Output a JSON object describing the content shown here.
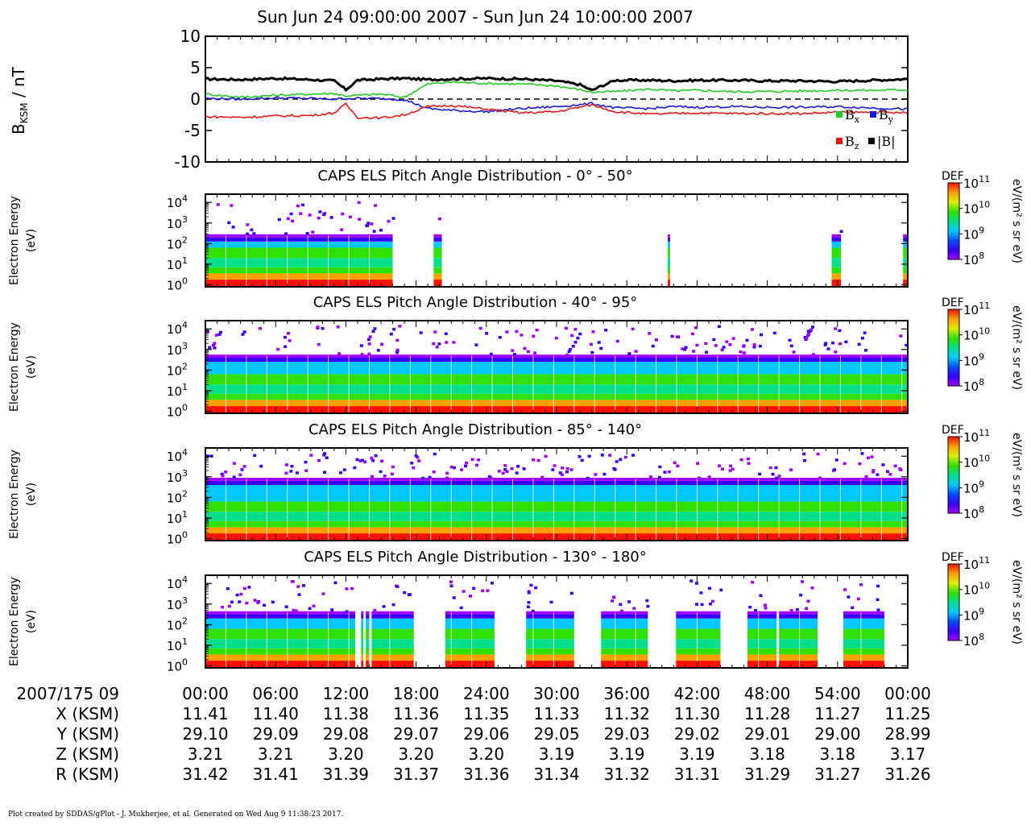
{
  "title": "Sun Jun 24 09:00:00 2007 - Sun Jun 24 10:00:00 2007",
  "footer": "Plot created by SDDAS/gPlot - J. Mukherjee, et al.  Generated on Wed Aug 9 11:38:23 2017.",
  "colors": {
    "bx": "#22cc22",
    "by": "#1a1ad6",
    "bz": "#e41a1a",
    "bmag": "#000000"
  },
  "chart_data": [
    {
      "type": "line",
      "ylabel_main": "B",
      "ylabel_sub": "KSM",
      "ylabel_unit": " / nT",
      "ylim": [
        -10,
        10
      ],
      "yticks": [
        10,
        5,
        0,
        -5,
        -10
      ],
      "xlim": [
        0,
        60
      ],
      "x": [
        0,
        3,
        6,
        9,
        11,
        12,
        13,
        15,
        17,
        19,
        21,
        24,
        27,
        30,
        32,
        33,
        35,
        38,
        40,
        42,
        45,
        48,
        51,
        54,
        57,
        60
      ],
      "legend": [
        "B",
        "B",
        "B",
        "|B|"
      ],
      "legend_subs": [
        "x",
        "y",
        "z",
        ""
      ],
      "series": [
        {
          "key": "bmag",
          "values": [
            3.2,
            3.1,
            3.3,
            3.1,
            2.9,
            1.5,
            3.0,
            3.2,
            3.3,
            3.1,
            3.2,
            3.3,
            3.2,
            2.9,
            2.3,
            1.4,
            3.0,
            3.0,
            2.9,
            3.0,
            3.0,
            2.9,
            2.9,
            2.8,
            3.0,
            3.2
          ]
        },
        {
          "key": "bx",
          "values": [
            0.8,
            0.3,
            0.6,
            0.8,
            0.9,
            0.5,
            0.6,
            0.8,
            0.3,
            2.4,
            2.7,
            2.5,
            2.4,
            2.1,
            1.5,
            1.1,
            1.2,
            1.6,
            1.3,
            1.4,
            1.2,
            1.2,
            1.3,
            1.4,
            1.4,
            1.5
          ]
        },
        {
          "key": "by",
          "values": [
            0.1,
            0.0,
            0.2,
            0.1,
            0.0,
            0.1,
            0.1,
            0.1,
            -0.1,
            -1.5,
            -1.8,
            -2.0,
            -1.5,
            -1.2,
            -0.9,
            -0.7,
            -1.4,
            -1.5,
            -1.2,
            -1.3,
            -1.2,
            -1.3,
            -1.3,
            -1.2,
            -1.4,
            -1.6
          ]
        },
        {
          "key": "bz",
          "values": [
            -2.8,
            -2.9,
            -2.7,
            -2.6,
            -2.2,
            -0.8,
            -2.9,
            -3.0,
            -2.5,
            -1.2,
            -1.0,
            -1.6,
            -2.2,
            -2.0,
            -1.3,
            -0.9,
            -2.0,
            -2.4,
            -2.3,
            -2.2,
            -2.3,
            -2.3,
            -2.3,
            -2.1,
            -2.1,
            -2.2
          ]
        }
      ]
    },
    {
      "type": "heatmap",
      "title": "CAPS ELS Pitch Angle Distribution - 0° - 50°",
      "ylabel": "Electron Energy",
      "ylabel_unit": "(eV)",
      "yscale": "log",
      "yticks": [
        "10",
        "10",
        "10",
        "10",
        "10"
      ],
      "ytick_exps": [
        "4",
        "3",
        "2",
        "1",
        "0"
      ],
      "colorbar_label": "DEF",
      "colorbar_unit": "eV/(m² s sr eV)",
      "colorbar_ticks": [
        "10",
        "10",
        "10",
        "10"
      ],
      "colorbar_exps": [
        "11",
        "10",
        "9",
        "8"
      ],
      "data_windows": [
        [
          0,
          16.0
        ],
        [
          19.5,
          20.2
        ],
        [
          39.5,
          39.7
        ],
        [
          53.5,
          54.3
        ],
        [
          59.6,
          60
        ]
      ],
      "upper_energy_log": 2.3
    },
    {
      "type": "heatmap",
      "title": "CAPS ELS Pitch Angle Distribution - 40° - 95°",
      "ylabel": "Electron Energy",
      "ylabel_unit": "(eV)",
      "yscale": "log",
      "yticks": [
        "10",
        "10",
        "10",
        "10",
        "10"
      ],
      "ytick_exps": [
        "4",
        "3",
        "2",
        "1",
        "0"
      ],
      "colorbar_label": "DEF",
      "colorbar_unit": "eV/(m² s sr eV)",
      "colorbar_ticks": [
        "10",
        "10",
        "10",
        "10"
      ],
      "colorbar_exps": [
        "11",
        "10",
        "9",
        "8"
      ],
      "data_windows": [
        [
          0,
          60
        ]
      ],
      "upper_energy_log": 2.6
    },
    {
      "type": "heatmap",
      "title": "CAPS ELS Pitch Angle Distribution - 85° - 140°",
      "ylabel": "Electron Energy",
      "ylabel_unit": "(eV)",
      "yscale": "log",
      "yticks": [
        "10",
        "10",
        "10",
        "10",
        "10"
      ],
      "ytick_exps": [
        "4",
        "3",
        "2",
        "1",
        "0"
      ],
      "colorbar_label": "DEF",
      "colorbar_unit": "eV/(m² s sr eV)",
      "colorbar_ticks": [
        "10",
        "10",
        "10",
        "10"
      ],
      "colorbar_exps": [
        "11",
        "10",
        "9",
        "8"
      ],
      "data_windows": [
        [
          0,
          60
        ]
      ],
      "upper_energy_log": 2.8
    },
    {
      "type": "heatmap",
      "title": "CAPS ELS Pitch Angle Distribution - 130° - 180°",
      "ylabel": "Electron Energy",
      "ylabel_unit": "(eV)",
      "yscale": "log",
      "yticks": [
        "10",
        "10",
        "10",
        "10",
        "10"
      ],
      "ytick_exps": [
        "4",
        "3",
        "2",
        "1",
        "0"
      ],
      "colorbar_label": "DEF",
      "colorbar_unit": "eV/(m² s sr eV)",
      "colorbar_ticks": [
        "10",
        "10",
        "10",
        "10"
      ],
      "colorbar_exps": [
        "11",
        "10",
        "9",
        "8"
      ],
      "data_windows": [
        [
          0,
          12.8
        ],
        [
          13.3,
          13.5
        ],
        [
          13.7,
          14.0
        ],
        [
          14.2,
          17.8
        ],
        [
          20.5,
          24.7
        ],
        [
          27.4,
          31.5
        ],
        [
          33.8,
          37.8
        ],
        [
          40.2,
          44.0
        ],
        [
          46.3,
          48.8
        ],
        [
          49.0,
          52.3
        ],
        [
          54.5,
          58.0
        ]
      ],
      "upper_energy_log": 2.5
    }
  ],
  "ephemeris": {
    "header": "2007/175 09",
    "times": [
      "00:00",
      "06:00",
      "12:00",
      "18:00",
      "24:00",
      "30:00",
      "36:00",
      "42:00",
      "48:00",
      "54:00",
      "00:00"
    ],
    "rows": [
      {
        "label": "X (KSM)",
        "values": [
          "11.41",
          "11.40",
          "11.38",
          "11.36",
          "11.35",
          "11.33",
          "11.32",
          "11.30",
          "11.28",
          "11.27",
          "11.25"
        ]
      },
      {
        "label": "Y (KSM)",
        "values": [
          "29.10",
          "29.09",
          "29.08",
          "29.07",
          "29.06",
          "29.05",
          "29.03",
          "29.02",
          "29.01",
          "29.00",
          "28.99"
        ]
      },
      {
        "label": "Z (KSM)",
        "values": [
          "3.21",
          "3.21",
          "3.20",
          "3.20",
          "3.20",
          "3.19",
          "3.19",
          "3.19",
          "3.18",
          "3.18",
          "3.17"
        ]
      },
      {
        "label": "R (KSM)",
        "values": [
          "31.42",
          "31.41",
          "31.39",
          "31.37",
          "31.36",
          "31.34",
          "31.32",
          "31.31",
          "31.29",
          "31.27",
          "31.26"
        ]
      }
    ]
  }
}
